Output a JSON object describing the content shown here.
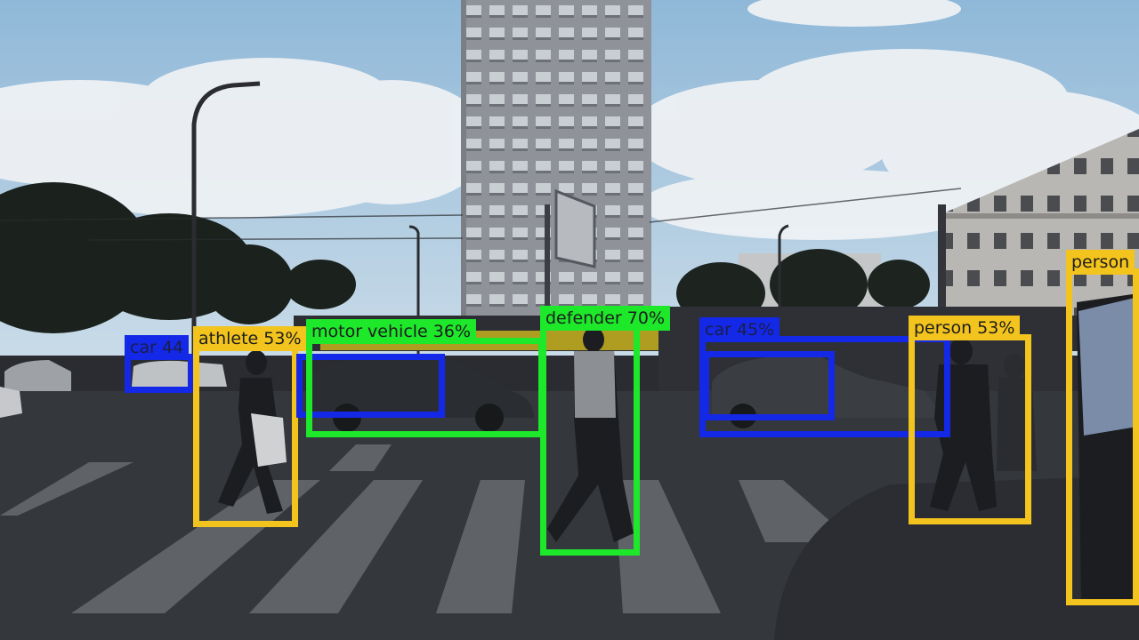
{
  "image": {
    "description_free": true,
    "colors": {
      "sky": "#9cc0dc",
      "cloud": "#e9edf1",
      "road": "#2f3237",
      "tower": "#9a9ea3",
      "box_person": "#f3c41d",
      "box_vehicle": "#1de82a",
      "box_car": "#1428e8"
    }
  },
  "detections": [
    {
      "id": "car-left",
      "label": "car 44",
      "color": "blue"
    },
    {
      "id": "athlete",
      "label": "athlete 53%",
      "color": "yellow"
    },
    {
      "id": "motor-vehicle",
      "label": "motor vehicle 36%",
      "color": "green"
    },
    {
      "id": "car-mid",
      "label": "",
      "color": "blue"
    },
    {
      "id": "defender",
      "label": "defender 70%",
      "color": "green"
    },
    {
      "id": "car-right",
      "label": "car 45%",
      "color": "blue"
    },
    {
      "id": "car-right-inner",
      "label": "",
      "color": "blue"
    },
    {
      "id": "person-mid",
      "label": "person 53%",
      "color": "yellow"
    },
    {
      "id": "person-right",
      "label": "person",
      "color": "yellow"
    }
  ]
}
